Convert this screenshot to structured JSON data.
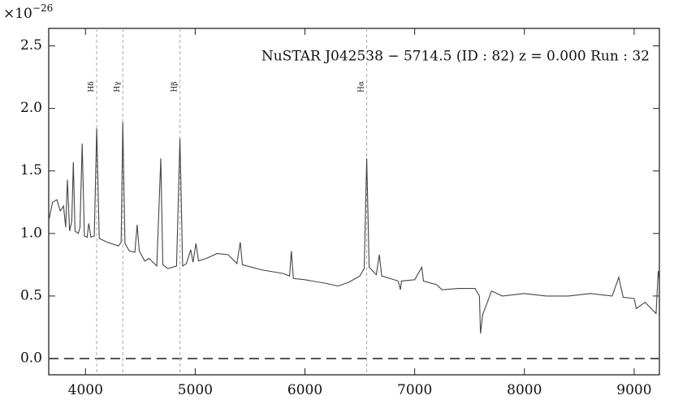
{
  "chart_data": {
    "type": "line",
    "title": "NuSTAR J042538 − 5714.5 (ID : 82)   z = 0.000   Run : 32",
    "offset_label": {
      "base": "×10",
      "exponent": "−26"
    },
    "x": [
      3670,
      3700,
      3740,
      3770,
      3800,
      3820,
      3835,
      3855,
      3875,
      3889,
      3905,
      3935,
      3950,
      3970,
      3990,
      4015,
      4030,
      4050,
      4080,
      4102,
      4125,
      4200,
      4300,
      4325,
      4340,
      4360,
      4400,
      4450,
      4471,
      4490,
      4540,
      4580,
      4650,
      4686,
      4705,
      4750,
      4830,
      4861,
      4885,
      4920,
      4959,
      4980,
      5007,
      5030,
      5100,
      5200,
      5300,
      5380,
      5411,
      5430,
      5600,
      5800,
      5860,
      5876,
      5895,
      6000,
      6200,
      6300,
      6400,
      6500,
      6540,
      6563,
      6585,
      6650,
      6678,
      6700,
      6850,
      6870,
      6880,
      7000,
      7065,
      7080,
      7200,
      7250,
      7400,
      7550,
      7590,
      7600,
      7620,
      7700,
      7800,
      8000,
      8200,
      8400,
      8600,
      8800,
      8860,
      8900,
      9000,
      9020,
      9100,
      9200,
      9220,
      9230
    ],
    "values": [
      1.12,
      1.25,
      1.27,
      1.18,
      1.22,
      1.05,
      1.43,
      1.02,
      1.1,
      1.57,
      1.02,
      1.0,
      1.05,
      1.72,
      0.98,
      0.97,
      1.08,
      0.97,
      0.98,
      1.84,
      0.96,
      0.93,
      0.9,
      0.93,
      1.89,
      0.92,
      0.86,
      0.85,
      1.07,
      0.86,
      0.78,
      0.8,
      0.74,
      1.6,
      0.75,
      0.72,
      0.74,
      1.76,
      0.74,
      0.76,
      0.87,
      0.77,
      0.92,
      0.78,
      0.8,
      0.84,
      0.83,
      0.76,
      0.93,
      0.75,
      0.71,
      0.68,
      0.66,
      0.86,
      0.64,
      0.63,
      0.6,
      0.58,
      0.61,
      0.66,
      0.72,
      1.6,
      0.73,
      0.67,
      0.83,
      0.66,
      0.62,
      0.55,
      0.62,
      0.63,
      0.73,
      0.62,
      0.59,
      0.55,
      0.56,
      0.56,
      0.5,
      0.2,
      0.35,
      0.54,
      0.5,
      0.52,
      0.5,
      0.5,
      0.52,
      0.5,
      0.65,
      0.49,
      0.48,
      0.4,
      0.45,
      0.36,
      0.7,
      0.62
    ],
    "color": "#444444",
    "lines": [
      {
        "label": "Hδ",
        "x": 4102
      },
      {
        "label": "Hγ",
        "x": 4340
      },
      {
        "label": "Hβ",
        "x": 4861
      },
      {
        "label": "Hα",
        "x": 6563
      }
    ],
    "reference_line": 0,
    "xlim": [
      3665,
      9230
    ],
    "ylim": [
      -0.13,
      2.64
    ],
    "xticks": [
      4000,
      5000,
      6000,
      7000,
      8000,
      9000
    ],
    "yticks": [
      {
        "value": 0,
        "label": "0.0"
      },
      0.5,
      {
        "value": 1,
        "label": "1.0"
      },
      1.5,
      {
        "value": 2,
        "label": "2.0"
      },
      2.5
    ]
  }
}
